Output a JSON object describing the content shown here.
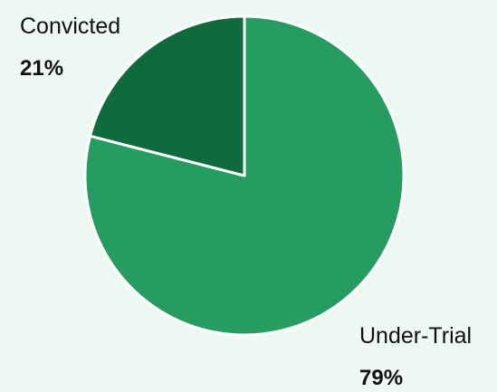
{
  "chart_data": {
    "type": "pie",
    "title": "",
    "slices": [
      {
        "label": "Under-Trial",
        "value": 79,
        "display": "79%",
        "color": "#259c60"
      },
      {
        "label": "Convicted",
        "value": 21,
        "display": "21%",
        "color": "#0e6b3c"
      }
    ],
    "start_angle_deg": 0,
    "direction": "clockwise",
    "slice_border_color": "#ffffff",
    "legend": "none",
    "data_labels": "outside"
  }
}
